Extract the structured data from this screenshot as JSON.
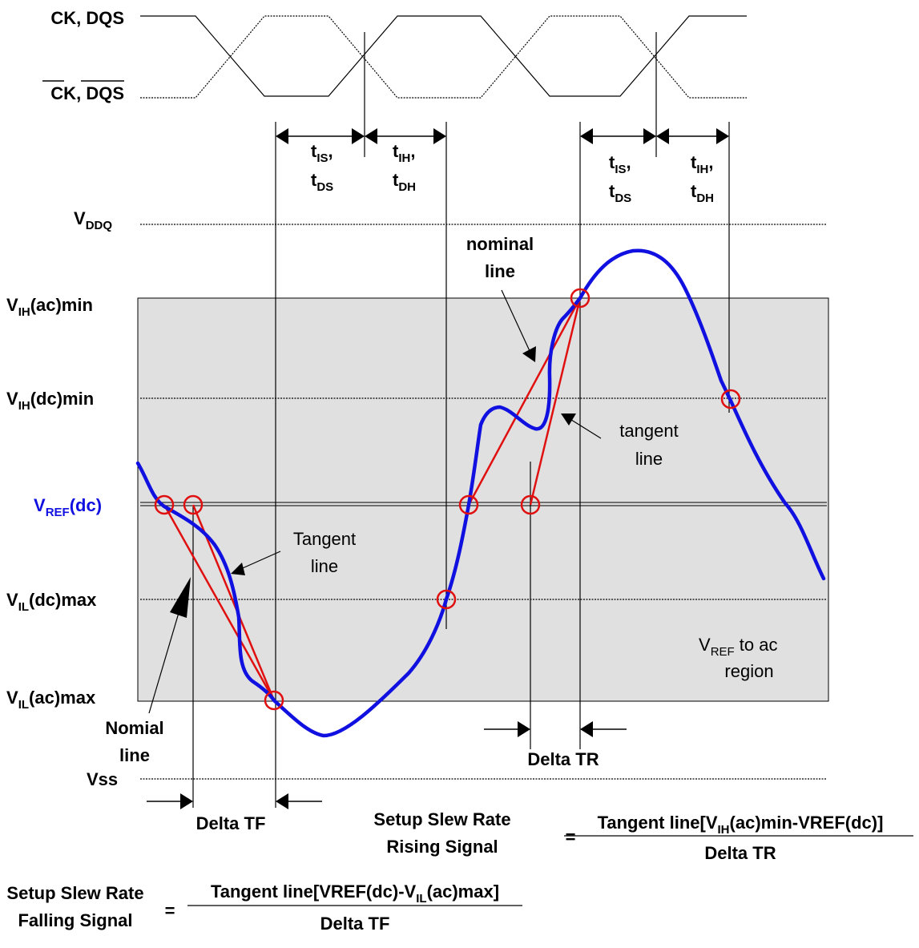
{
  "signals": {
    "ck_dqs": "CK, DQS",
    "ck_bar": "CK",
    "dqs_bar": "DQS",
    "sep": ", "
  },
  "timing": {
    "t": "t",
    "is": "IS",
    "ih": "IH",
    "ds": "DS",
    "dh": "DH",
    "comma": ","
  },
  "levels": {
    "v": "V",
    "vddq_sub": "DDQ",
    "ih_sub": "IH",
    "il_sub": "IL",
    "ref_sub": "REF",
    "ac_min": "(ac)min",
    "dc_min": "(dc)min",
    "dc": "(dc)",
    "dc_max": "(dc)max",
    "ac_max": "(ac)max",
    "vss": "Vss"
  },
  "annotations": {
    "nominal_line_1": "nominal",
    "nominal_line_2": "line",
    "tangent_line_1": "tangent",
    "tangent_line_2": "line",
    "Tangent_line_1": "Tangent",
    "Tangent_line_2": "line",
    "nomial_line_1": "Nomial",
    "nomial_line_2": "line",
    "region_sub": "REF",
    "region_1_suffix": " to ac",
    "region_2": "region",
    "delta_tr": "Delta TR",
    "delta_tf": "Delta TF"
  },
  "formulas": {
    "rising_l1": "Setup Slew Rate",
    "rising_l2": "Rising Signal",
    "rising_num_a": "Tangent line[V",
    "rising_num_sub": "IH",
    "rising_num_b": "(ac)min-VREF(dc)]",
    "rising_den": "Delta TR",
    "falling_l1": "Setup Slew Rate",
    "falling_l2": "Falling Signal",
    "falling_num_a": "Tangent line[VREF(dc)-V",
    "falling_num_sub": "IL",
    "falling_num_b": "(ac)max]",
    "falling_den": "Delta TF",
    "equals": "="
  },
  "colors": {
    "signal": "#1010e0",
    "tangent": "#e01010",
    "region": "#e0e0e0",
    "grid": "#000000"
  }
}
